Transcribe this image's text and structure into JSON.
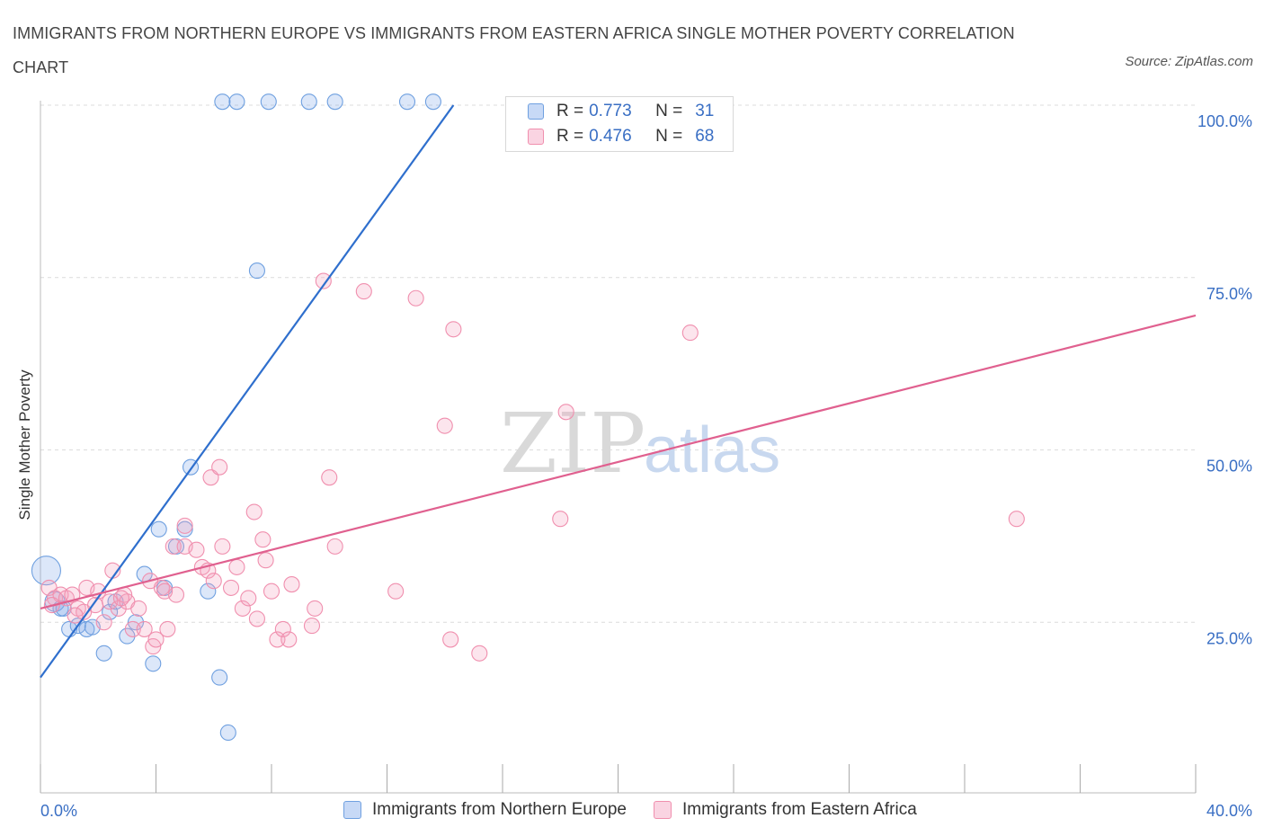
{
  "title": "IMMIGRANTS FROM NORTHERN EUROPE VS IMMIGRANTS FROM EASTERN AFRICA SINGLE MOTHER POVERTY CORRELATION CHART",
  "source": "Source: ZipAtlas.com",
  "watermark": {
    "zip": "ZIP",
    "atlas": "atlas"
  },
  "legend": {
    "r_label": "R =",
    "n_label": "N =",
    "rows": [
      {
        "r": "0.773",
        "n": "31",
        "color": "#6fa0e0"
      },
      {
        "r": "0.476",
        "n": "68",
        "color": "#f08fae"
      }
    ]
  },
  "chart_data": {
    "type": "scatter",
    "xlabel": "",
    "ylabel": "Single Mother Poverty",
    "xlim": [
      0,
      40
    ],
    "ylim": [
      0,
      100
    ],
    "x_tick_labels": [
      "0.0%",
      "40.0%"
    ],
    "y_tick_labels": [
      {
        "value": 25,
        "label": "25.0%"
      },
      {
        "value": 50,
        "label": "50.0%"
      },
      {
        "value": 75,
        "label": "75.0%"
      },
      {
        "value": 100,
        "label": "100.0%"
      }
    ],
    "series": [
      {
        "name": "Immigrants from Northern Europe",
        "color": "#6fa0e0",
        "fill": "rgba(130,170,235,0.28)",
        "trend": {
          "x": [
            0,
            14.3
          ],
          "y": [
            17,
            100
          ],
          "color": "#2f6fcd"
        },
        "points": [
          [
            0.2,
            32.5
          ],
          [
            0.5,
            28
          ],
          [
            0.7,
            27
          ],
          [
            1.0,
            24
          ],
          [
            1.3,
            24.5
          ],
          [
            1.6,
            24
          ],
          [
            1.8,
            24.3
          ],
          [
            2.2,
            20.5
          ],
          [
            2.4,
            26.5
          ],
          [
            2.6,
            28
          ],
          [
            3.0,
            23
          ],
          [
            3.3,
            25
          ],
          [
            3.6,
            32
          ],
          [
            3.9,
            19
          ],
          [
            4.1,
            38.5
          ],
          [
            4.3,
            30
          ],
          [
            4.7,
            36
          ],
          [
            5.0,
            38.5
          ],
          [
            5.2,
            47.5
          ],
          [
            5.8,
            29.5
          ],
          [
            6.2,
            17
          ],
          [
            6.5,
            9
          ],
          [
            7.5,
            76
          ],
          [
            6.3,
            100.5
          ],
          [
            6.8,
            100.5
          ],
          [
            7.9,
            100.5
          ],
          [
            9.3,
            100.5
          ],
          [
            10.2,
            100.5
          ],
          [
            12.7,
            100.5
          ],
          [
            13.6,
            100.5
          ],
          [
            0.8,
            27
          ]
        ]
      },
      {
        "name": "Immigrants from Eastern Africa",
        "color": "#f08fae",
        "fill": "rgba(245,160,190,0.28)",
        "trend": {
          "x": [
            0,
            40
          ],
          "y": [
            27,
            69.5
          ],
          "color": "#e0608f"
        },
        "points": [
          [
            0.3,
            30
          ],
          [
            0.5,
            28.5
          ],
          [
            0.7,
            29
          ],
          [
            0.9,
            28.5
          ],
          [
            1.1,
            29
          ],
          [
            1.3,
            27
          ],
          [
            1.5,
            26.5
          ],
          [
            1.6,
            30
          ],
          [
            1.9,
            27.5
          ],
          [
            2.0,
            29.5
          ],
          [
            2.2,
            25
          ],
          [
            2.4,
            28
          ],
          [
            2.5,
            32.5
          ],
          [
            2.7,
            27
          ],
          [
            2.9,
            29
          ],
          [
            3.0,
            28
          ],
          [
            3.2,
            24
          ],
          [
            3.4,
            27
          ],
          [
            3.6,
            24
          ],
          [
            3.8,
            31
          ],
          [
            3.9,
            21.5
          ],
          [
            4.0,
            22.5
          ],
          [
            4.2,
            30
          ],
          [
            4.4,
            24
          ],
          [
            4.6,
            36
          ],
          [
            4.7,
            29
          ],
          [
            5.0,
            39
          ],
          [
            5.0,
            36
          ],
          [
            5.4,
            35.5
          ],
          [
            5.6,
            33
          ],
          [
            5.8,
            32.5
          ],
          [
            5.9,
            46
          ],
          [
            6.2,
            47.5
          ],
          [
            6.3,
            36
          ],
          [
            6.6,
            30
          ],
          [
            6.8,
            33
          ],
          [
            7.0,
            27
          ],
          [
            7.2,
            28.5
          ],
          [
            7.4,
            41
          ],
          [
            7.5,
            25.5
          ],
          [
            7.7,
            37
          ],
          [
            7.8,
            34
          ],
          [
            8.0,
            29.5
          ],
          [
            8.2,
            22.5
          ],
          [
            8.4,
            24
          ],
          [
            8.6,
            22.5
          ],
          [
            8.7,
            30.5
          ],
          [
            9.4,
            24.5
          ],
          [
            9.5,
            27
          ],
          [
            9.8,
            74.5
          ],
          [
            10.0,
            46
          ],
          [
            10.2,
            36
          ],
          [
            11.2,
            73
          ],
          [
            12.3,
            29.5
          ],
          [
            13.0,
            72
          ],
          [
            14.0,
            53.5
          ],
          [
            14.2,
            22.5
          ],
          [
            14.3,
            67.5
          ],
          [
            15.2,
            20.5
          ],
          [
            18.0,
            40
          ],
          [
            18.2,
            55.5
          ],
          [
            22.5,
            67
          ],
          [
            33.8,
            40
          ],
          [
            0.4,
            27.5
          ],
          [
            1.2,
            26
          ],
          [
            2.8,
            28.5
          ],
          [
            4.3,
            29.5
          ],
          [
            6.0,
            31
          ]
        ]
      }
    ]
  }
}
